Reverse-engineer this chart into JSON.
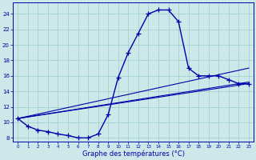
{
  "title": "Graphe des températures (°C)",
  "bg_color": "#cce8e8",
  "line_color": "#0000aa",
  "grid_color": "#99cccc",
  "xlim": [
    -0.5,
    23.5
  ],
  "ylim": [
    7.5,
    25.5
  ],
  "xticks": [
    0,
    1,
    2,
    3,
    4,
    5,
    6,
    7,
    8,
    9,
    10,
    11,
    12,
    13,
    14,
    15,
    16,
    17,
    18,
    19,
    20,
    21,
    22,
    23
  ],
  "yticks": [
    8,
    10,
    12,
    14,
    16,
    18,
    20,
    22,
    24
  ],
  "main_x": [
    0,
    1,
    2,
    3,
    4,
    5,
    6,
    7,
    8,
    9,
    10,
    11,
    12,
    13,
    14,
    15,
    16,
    17,
    18,
    19,
    20,
    21,
    22,
    23
  ],
  "main_y": [
    10.5,
    9.5,
    9.0,
    8.8,
    8.5,
    8.3,
    8.0,
    8.0,
    8.5,
    11.0,
    15.8,
    19.0,
    21.5,
    24.0,
    24.5,
    24.5,
    23.0,
    17.0,
    16.0,
    16.0,
    16.0,
    15.5,
    15.0,
    15.0
  ],
  "line2_x": [
    0,
    23
  ],
  "line2_y": [
    10.5,
    17.0
  ],
  "line3_x": [
    0,
    23
  ],
  "line3_y": [
    10.5,
    15.2
  ],
  "line4_x": [
    0,
    23
  ],
  "line4_y": [
    10.5,
    15.0
  ],
  "xlabel_fontsize": 6,
  "tick_fontsize": 5
}
